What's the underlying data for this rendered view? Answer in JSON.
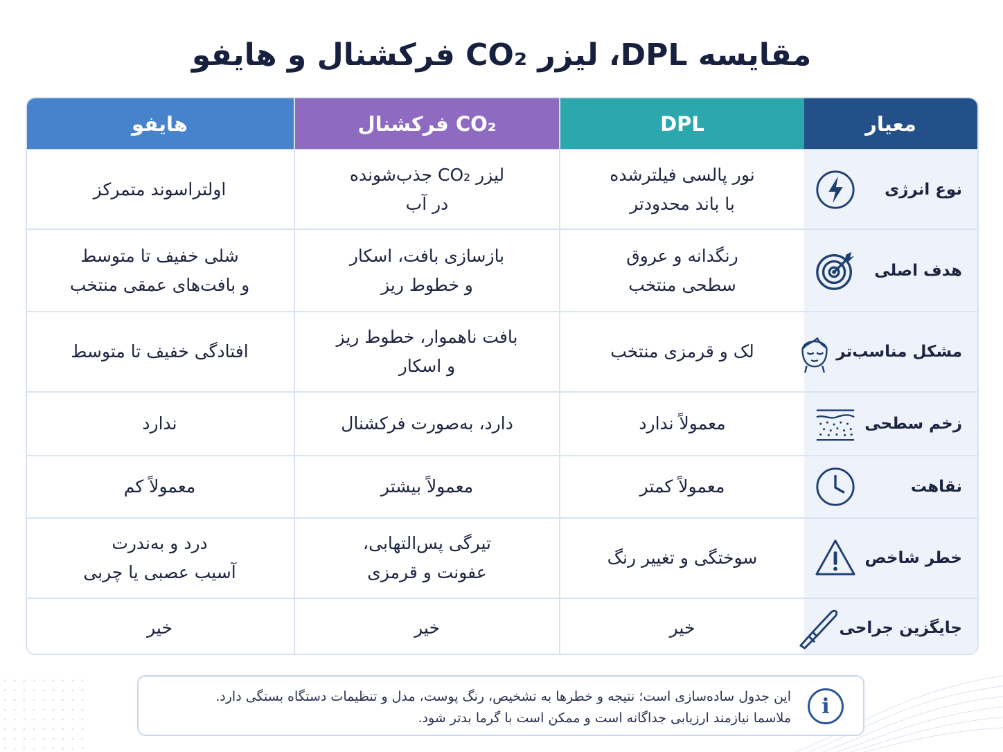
{
  "title": "مقایسه DPL، لیزر CO₂ فرکشنال و هایفو",
  "headers": {
    "criteria": "معیار",
    "dpl": "DPL",
    "co2": "CO₂ فرکشنال",
    "hifu": "هایفو"
  },
  "rows": [
    {
      "label": "نوع انرژی",
      "icon": "lightning-icon",
      "dpl": [
        "نور پالسی فیلترشده",
        "با باند محدودتر"
      ],
      "co2": [
        "لیزر CO₂ جذب‌شونده",
        "در آب"
      ],
      "hifu": [
        "اولتراسوند متمرکز"
      ]
    },
    {
      "label": "هدف اصلی",
      "icon": "target-icon",
      "dpl": [
        "رنگدانه و عروق",
        "سطحی منتخب"
      ],
      "co2": [
        "بازسازی بافت، اسکار",
        "و خطوط ریز"
      ],
      "hifu": [
        "شلی خفیف تا متوسط",
        "و بافت‌های عمقی منتخب"
      ]
    },
    {
      "label": "مشکل مناسب‌تر",
      "icon": "face-icon",
      "dpl": [
        "لک و قرمزی منتخب"
      ],
      "co2": [
        "بافت ناهموار، خطوط ریز",
        "و اسکار"
      ],
      "hifu": [
        "افتادگی خفیف تا متوسط"
      ]
    },
    {
      "label": "زخم سطحی",
      "icon": "skin-layers-icon",
      "dpl": [
        "معمولاً ندارد"
      ],
      "co2": [
        "دارد، به‌صورت فرکشنال"
      ],
      "hifu": [
        "ندارد"
      ]
    },
    {
      "label": "نقاهت",
      "icon": "clock-icon",
      "dpl": [
        "معمولاً کمتر"
      ],
      "co2": [
        "معمولاً بیشتر"
      ],
      "hifu": [
        "معمولاً کم"
      ]
    },
    {
      "label": "خطر شاخص",
      "icon": "warning-icon",
      "dpl": [
        "سوختگی و تغییر رنگ"
      ],
      "co2": [
        "تیرگی پس‌التهابی،",
        "عفونت و قرمزی"
      ],
      "hifu": [
        "درد و به‌ندرت",
        "آسیب عصبی یا چربی"
      ]
    },
    {
      "label": "جایگزین جراحی",
      "icon": "scalpel-icon",
      "dpl": [
        "خیر"
      ],
      "co2": [
        "خیر"
      ],
      "hifu": [
        "خیر"
      ]
    }
  ],
  "note": {
    "icon": "info-icon",
    "lines": [
      "این جدول ساده‌سازی است؛ نتیجه و خطرها به تشخیص، رنگ پوست، مدل و تنظیمات دستگاه بستگی دارد.",
      "ملاسما نیازمند ارزیابی جداگانه است و ممکن است با گرما بدتر شود."
    ]
  },
  "colors": {
    "criteria_header": "#24508a",
    "dpl_header": "#2ba7ad",
    "co2_header": "#8e6bc0",
    "hifu_header": "#4683cc",
    "criteria_bg": "#eef3fb",
    "icon_color": "#1f3f73"
  }
}
